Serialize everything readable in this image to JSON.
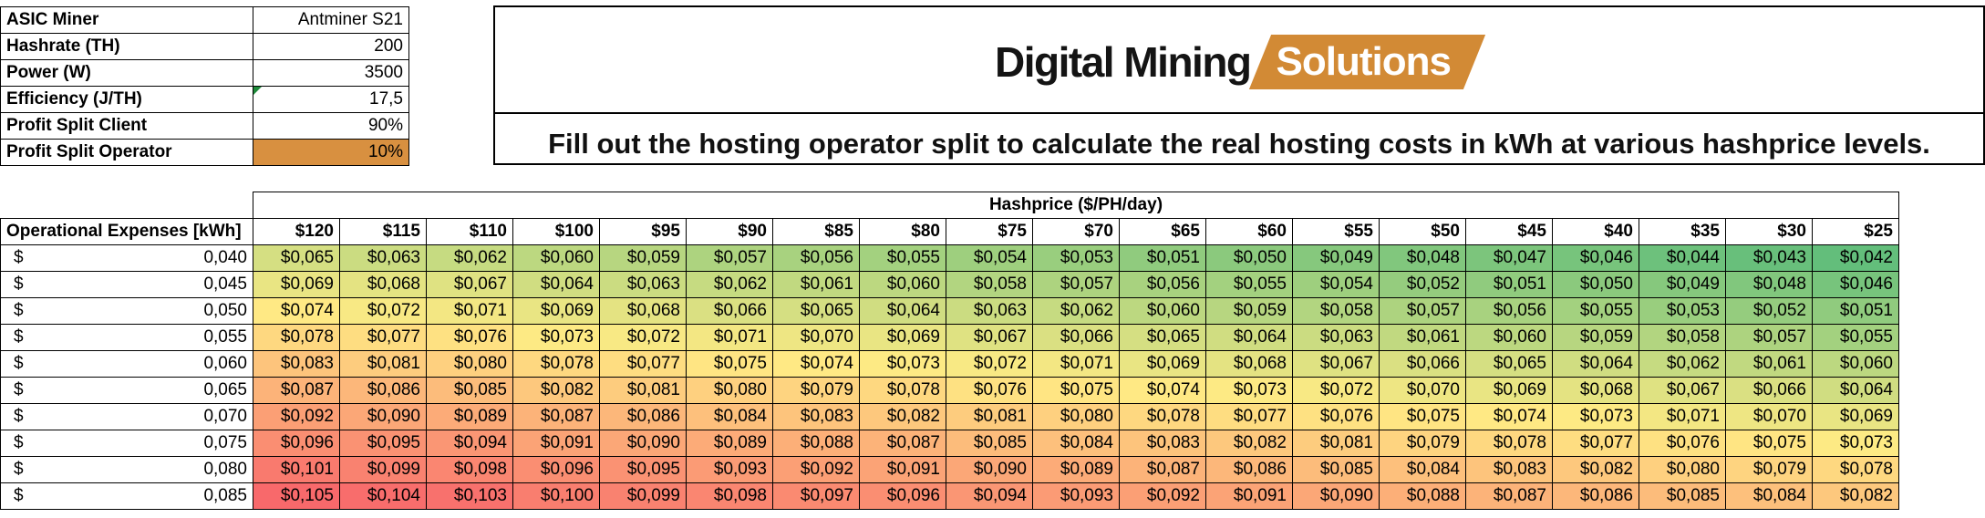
{
  "info": {
    "rows": [
      {
        "label": "ASIC Miner",
        "value": "Antminer S21"
      },
      {
        "label": "Hashrate (TH)",
        "value": "200"
      },
      {
        "label": "Power (W)",
        "value": "3500"
      },
      {
        "label": "Efficiency (J/TH)",
        "value": "17,5"
      },
      {
        "label": "Profit Split Client",
        "value": "90%"
      },
      {
        "label": "Profit Split Operator",
        "value": "10%"
      }
    ]
  },
  "brand": {
    "logo_primary": "Digital Mining",
    "logo_secondary": "Solutions",
    "subtitle": "Fill out the hosting operator split to calculate the real hosting costs in kWh at various hashprice levels."
  },
  "colors": {
    "operator_input_fill": "#d89040",
    "logo_accent": "#d28a35",
    "scale_low": "#63be7b",
    "scale_mid": "#ffeb84",
    "scale_high": "#f8696b"
  },
  "table": {
    "hashprice_header": "Hashprice ($/PH/day)",
    "opex_header": "Operational Expenses [kWh]",
    "currency_symbol": "$",
    "hashprices": [
      "$120",
      "$115",
      "$110",
      "$100",
      "$95",
      "$90",
      "$85",
      "$80",
      "$75",
      "$70",
      "$65",
      "$60",
      "$55",
      "$50",
      "$45",
      "$40",
      "$35",
      "$30",
      "$25"
    ],
    "rows": [
      {
        "rate": "0,040",
        "values": [
          "$0,065",
          "$0,063",
          "$0,062",
          "$0,060",
          "$0,059",
          "$0,057",
          "$0,056",
          "$0,055",
          "$0,054",
          "$0,053",
          "$0,051",
          "$0,050",
          "$0,049",
          "$0,048",
          "$0,047",
          "$0,046",
          "$0,044",
          "$0,043",
          "$0,042"
        ]
      },
      {
        "rate": "0,045",
        "values": [
          "$0,069",
          "$0,068",
          "$0,067",
          "$0,064",
          "$0,063",
          "$0,062",
          "$0,061",
          "$0,060",
          "$0,058",
          "$0,057",
          "$0,056",
          "$0,055",
          "$0,054",
          "$0,052",
          "$0,051",
          "$0,050",
          "$0,049",
          "$0,048",
          "$0,046"
        ]
      },
      {
        "rate": "0,050",
        "values": [
          "$0,074",
          "$0,072",
          "$0,071",
          "$0,069",
          "$0,068",
          "$0,066",
          "$0,065",
          "$0,064",
          "$0,063",
          "$0,062",
          "$0,060",
          "$0,059",
          "$0,058",
          "$0,057",
          "$0,056",
          "$0,055",
          "$0,053",
          "$0,052",
          "$0,051"
        ]
      },
      {
        "rate": "0,055",
        "values": [
          "$0,078",
          "$0,077",
          "$0,076",
          "$0,073",
          "$0,072",
          "$0,071",
          "$0,070",
          "$0,069",
          "$0,067",
          "$0,066",
          "$0,065",
          "$0,064",
          "$0,063",
          "$0,061",
          "$0,060",
          "$0,059",
          "$0,058",
          "$0,057",
          "$0,055"
        ]
      },
      {
        "rate": "0,060",
        "values": [
          "$0,083",
          "$0,081",
          "$0,080",
          "$0,078",
          "$0,077",
          "$0,075",
          "$0,074",
          "$0,073",
          "$0,072",
          "$0,071",
          "$0,069",
          "$0,068",
          "$0,067",
          "$0,066",
          "$0,065",
          "$0,064",
          "$0,062",
          "$0,061",
          "$0,060"
        ]
      },
      {
        "rate": "0,065",
        "values": [
          "$0,087",
          "$0,086",
          "$0,085",
          "$0,082",
          "$0,081",
          "$0,080",
          "$0,079",
          "$0,078",
          "$0,076",
          "$0,075",
          "$0,074",
          "$0,073",
          "$0,072",
          "$0,070",
          "$0,069",
          "$0,068",
          "$0,067",
          "$0,066",
          "$0,064"
        ]
      },
      {
        "rate": "0,070",
        "values": [
          "$0,092",
          "$0,090",
          "$0,089",
          "$0,087",
          "$0,086",
          "$0,084",
          "$0,083",
          "$0,082",
          "$0,081",
          "$0,080",
          "$0,078",
          "$0,077",
          "$0,076",
          "$0,075",
          "$0,074",
          "$0,073",
          "$0,071",
          "$0,070",
          "$0,069"
        ]
      },
      {
        "rate": "0,075",
        "values": [
          "$0,096",
          "$0,095",
          "$0,094",
          "$0,091",
          "$0,090",
          "$0,089",
          "$0,088",
          "$0,087",
          "$0,085",
          "$0,084",
          "$0,083",
          "$0,082",
          "$0,081",
          "$0,079",
          "$0,078",
          "$0,077",
          "$0,076",
          "$0,075",
          "$0,073"
        ]
      },
      {
        "rate": "0,080",
        "values": [
          "$0,101",
          "$0,099",
          "$0,098",
          "$0,096",
          "$0,095",
          "$0,093",
          "$0,092",
          "$0,091",
          "$0,090",
          "$0,089",
          "$0,087",
          "$0,086",
          "$0,085",
          "$0,084",
          "$0,083",
          "$0,082",
          "$0,080",
          "$0,079",
          "$0,078"
        ]
      },
      {
        "rate": "0,085",
        "values": [
          "$0,105",
          "$0,104",
          "$0,103",
          "$0,100",
          "$0,099",
          "$0,098",
          "$0,097",
          "$0,096",
          "$0,094",
          "$0,093",
          "$0,092",
          "$0,091",
          "$0,090",
          "$0,088",
          "$0,087",
          "$0,086",
          "$0,085",
          "$0,084",
          "$0,082"
        ]
      }
    ]
  }
}
